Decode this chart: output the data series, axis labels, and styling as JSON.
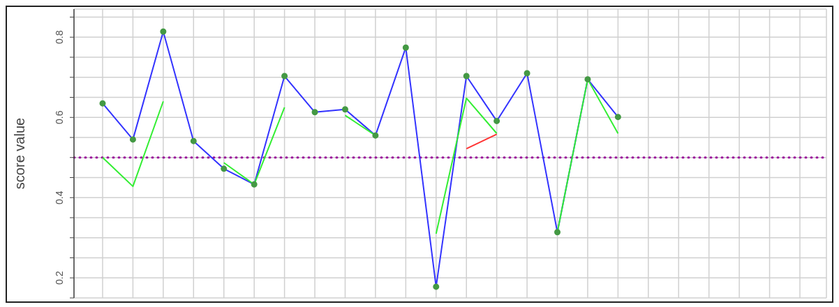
{
  "chart_data": {
    "type": "line",
    "ylabel": "score value",
    "categories": [
      null,
      null,
      null,
      null,
      null,
      null,
      null,
      null,
      null,
      null,
      null,
      null,
      null,
      null,
      null,
      null,
      null,
      null,
      null,
      null,
      null,
      null,
      null,
      null
    ],
    "series": [
      {
        "color": "#3333ff",
        "marker": "circle",
        "values": [
          0.635,
          0.545,
          0.814,
          0.541,
          0.472,
          0.433,
          0.703,
          0.613,
          0.62,
          0.555,
          0.774,
          0.178,
          0.703,
          0.591,
          0.71,
          0.314,
          0.695,
          0.601,
          null,
          null,
          null,
          null,
          null,
          null
        ]
      },
      {
        "color": "#33ee33",
        "marker": "none",
        "values": [
          0.5,
          0.428,
          0.64,
          null,
          0.487,
          0.433,
          0.625,
          null,
          0.605,
          0.555,
          null,
          0.31,
          0.648,
          0.56,
          null,
          0.314,
          0.695,
          0.56,
          null,
          null,
          null,
          null,
          null,
          null
        ]
      },
      {
        "color": "#ff3333",
        "marker": "none",
        "values": [
          null,
          null,
          null,
          null,
          null,
          null,
          null,
          null,
          null,
          null,
          null,
          null,
          0.522,
          0.558,
          null,
          null,
          null,
          null,
          null,
          null,
          null,
          null,
          null,
          null
        ]
      }
    ],
    "ylim": [
      0.15,
      0.87
    ],
    "yticks": [
      {
        "value": 0.15,
        "label": null
      },
      0.2,
      {
        "value": 0.25,
        "label": null
      },
      {
        "value": 0.3,
        "label": null
      },
      {
        "value": 0.35,
        "label": null
      },
      0.4,
      {
        "value": 0.45,
        "label": null
      },
      {
        "value": 0.5,
        "label": null
      },
      {
        "value": 0.55,
        "label": null
      },
      0.6,
      {
        "value": 0.65,
        "label": null
      },
      {
        "value": 0.7,
        "label": null
      },
      {
        "value": 0.75,
        "label": null
      },
      0.8,
      {
        "value": 0.85,
        "label": null
      }
    ],
    "grid": true,
    "line_style": "solid",
    "ref_lines": [
      {
        "axis": "y",
        "value": 0.5,
        "color": "#990099",
        "line_style": "dotted"
      }
    ]
  }
}
